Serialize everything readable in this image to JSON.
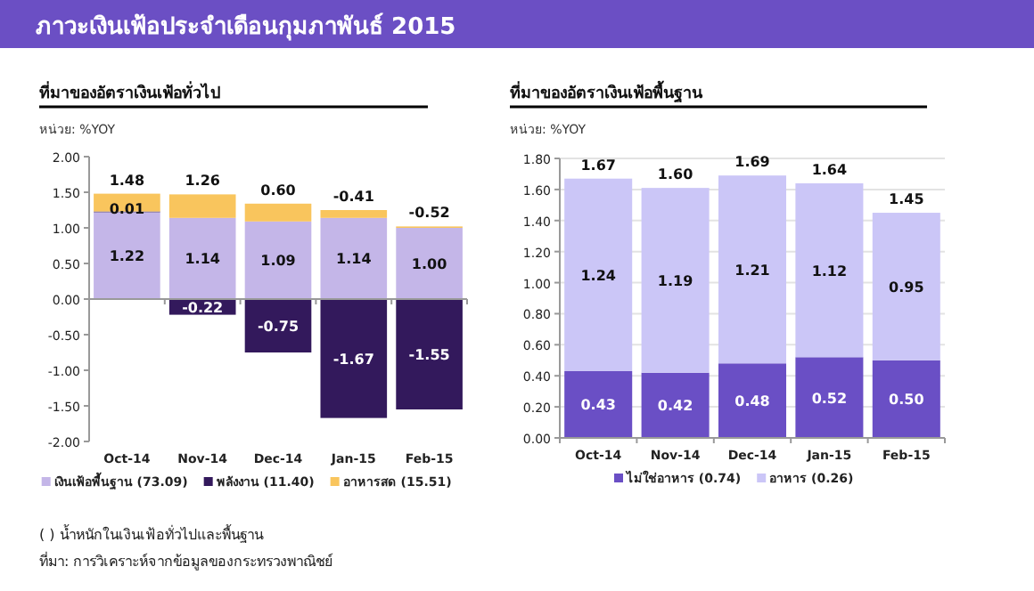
{
  "chart_data": [
    {
      "type": "bar",
      "title": "ภาวะเงินเฟ้อประจำเดือนกุมภาพันธ์ 2015",
      "subtitle": "ที่มาของอัตราเงินเฟ้อทั่วไป",
      "ylabel": "หน่วย: %YOY",
      "stacked": true,
      "categories": [
        "Oct-14",
        "Nov-14",
        "Dec-14",
        "Jan-15",
        "Feb-15"
      ],
      "series": [
        {
          "name": "เงินเฟ้อพื้นฐาน (73.09)",
          "color": "#c4b6e8",
          "values": [
            1.22,
            1.14,
            1.09,
            1.14,
            1.0
          ],
          "value_labels": [
            "1.22",
            "1.14",
            "1.09",
            "1.14",
            "1.00"
          ]
        },
        {
          "name": "พลังงาน (11.40)",
          "color": "#33195c",
          "values": [
            0.01,
            -0.22,
            -0.75,
            -1.67,
            -1.55
          ],
          "value_labels": [
            "0.01",
            "-0.22",
            "-0.75",
            "-1.67",
            "-1.55"
          ]
        },
        {
          "name": "อาหารสด (15.51)",
          "color": "#f9c55d",
          "values": [
            0.25,
            0.33,
            0.25,
            0.11,
            0.02
          ]
        }
      ],
      "totals": [
        "1.48",
        "1.26",
        "0.60",
        "-0.41",
        "-0.52"
      ],
      "ylim": [
        -2,
        2
      ],
      "yticks": [
        {
          "value": -2,
          "label": "-2.00"
        },
        {
          "value": -1.5,
          "label": "-1.50"
        },
        {
          "value": -1,
          "label": "-1.00"
        },
        {
          "value": -0.5,
          "label": "-0.50"
        },
        {
          "value": 0,
          "label": "0.00"
        },
        {
          "value": 0.5,
          "label": "0.50"
        },
        {
          "value": 1,
          "label": "1.00"
        },
        {
          "value": 1.5,
          "label": "1.50"
        },
        {
          "value": 2,
          "label": "2.00"
        }
      ],
      "legend": "bottom",
      "annotations": [
        "( ) น้ำหนักในเงินเฟ้อทั่วไปและพื้นฐาน",
        "ที่มา: การวิเคราะห์จากข้อมูลของกระทรวงพาณิชย์"
      ]
    },
    {
      "type": "bar",
      "subtitle": "ที่มาของอัตราเงินเฟ้อพื้นฐาน",
      "ylabel": "หน่วย: %YOY",
      "stacked": true,
      "categories": [
        "Oct-14",
        "Nov-14",
        "Dec-14",
        "Jan-15",
        "Feb-15"
      ],
      "series": [
        {
          "name": "ไม่ใช่อาหาร (0.74)",
          "color": "#6a4fc5",
          "values": [
            0.43,
            0.42,
            0.48,
            0.52,
            0.5
          ],
          "value_labels": [
            "0.43",
            "0.42",
            "0.48",
            "0.52",
            "0.50"
          ]
        },
        {
          "name": "อาหาร (0.26)",
          "color": "#cbc6f7",
          "values": [
            1.24,
            1.19,
            1.21,
            1.12,
            0.95
          ],
          "value_labels": [
            "1.24",
            "1.19",
            "1.21",
            "1.12",
            "0.95"
          ]
        }
      ],
      "totals": [
        "1.67",
        "1.60",
        "1.69",
        "1.64",
        "1.45"
      ],
      "ylim": [
        0,
        1.8
      ],
      "yticks": [
        {
          "value": 0,
          "label": "0.00"
        },
        {
          "value": 0.2,
          "label": "0.20"
        },
        {
          "value": 0.4,
          "label": "0.40"
        },
        {
          "value": 0.6,
          "label": "0.60"
        },
        {
          "value": 0.8,
          "label": "0.80"
        },
        {
          "value": 1,
          "label": "1.00"
        },
        {
          "value": 1.2,
          "label": "1.20"
        },
        {
          "value": 1.4,
          "label": "1.40"
        },
        {
          "value": 1.6,
          "label": "1.60"
        },
        {
          "value": 1.8,
          "label": "1.80"
        }
      ],
      "grid": "y",
      "legend": "bottom"
    }
  ]
}
